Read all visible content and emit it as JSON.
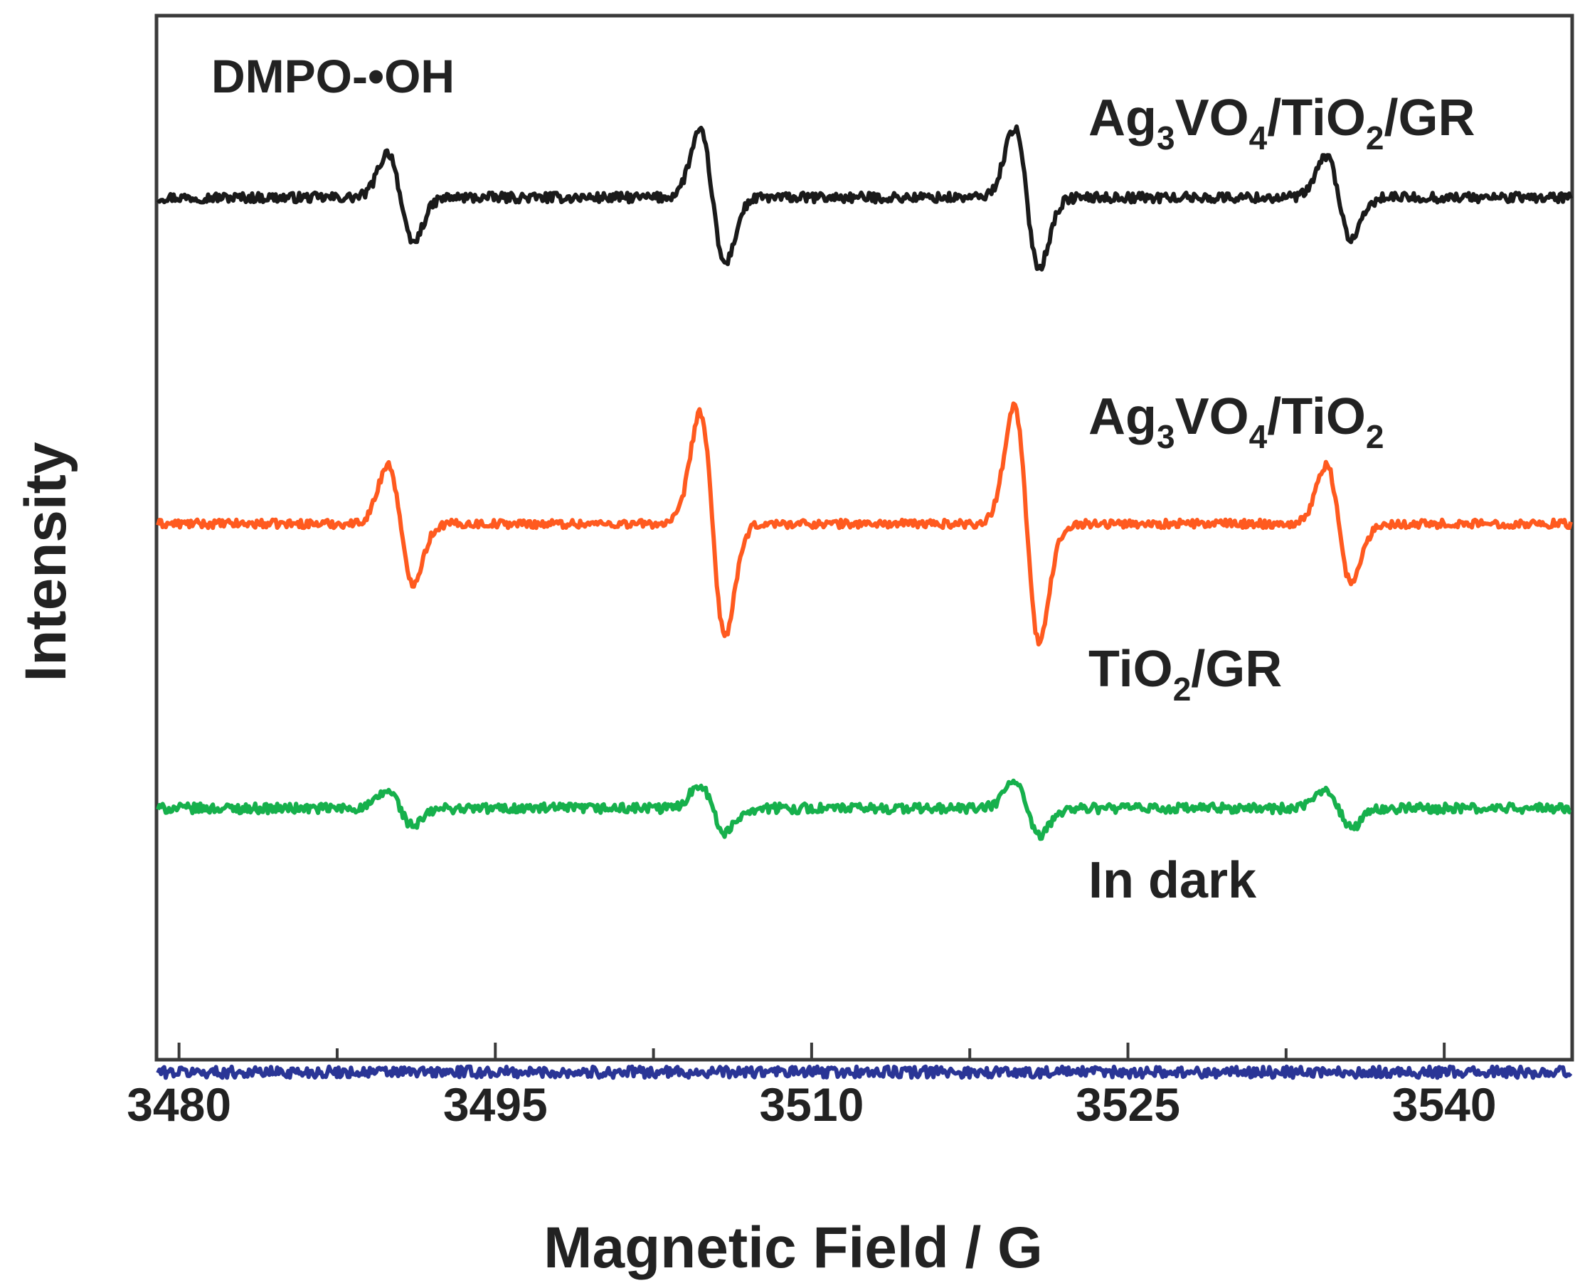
{
  "chart_data": {
    "type": "line",
    "title": "DMPO-•OH",
    "xlabel": "Magnetic Field / G",
    "ylabel": "Intensity",
    "xlim": [
      3479,
      3546
    ],
    "ylim": [
      -1.5,
      13.5
    ],
    "xticks": [
      3480,
      3495,
      3510,
      3525,
      3540
    ],
    "xtick_labels": [
      "3480",
      "3495",
      "3510",
      "3525",
      "3540"
    ],
    "y_ticks_shown": false,
    "grid": false,
    "hyperfine_lines_G": [
      3490.5,
      3505.3,
      3520.2,
      3535.0
    ],
    "series": [
      {
        "name": "Ag3VO4/TiO2/GR",
        "label_parts": [
          [
            "Ag",
            ""
          ],
          [
            "3",
            "sub"
          ],
          [
            "VO",
            ""
          ],
          [
            "4",
            "sub"
          ],
          [
            "/TiO",
            ""
          ],
          [
            "2",
            "sub"
          ],
          [
            "/GR",
            ""
          ]
        ],
        "color": "#1a1a1a",
        "baseline": 10.9,
        "amplitudes": [
          0.65,
          0.95,
          1.0,
          0.6
        ],
        "noise": 0.07
      },
      {
        "name": "Ag3VO4/TiO2",
        "label_parts": [
          [
            "Ag",
            ""
          ],
          [
            "3",
            "sub"
          ],
          [
            "VO",
            ""
          ],
          [
            "4",
            "sub"
          ],
          [
            "/TiO",
            ""
          ],
          [
            "2",
            "sub"
          ]
        ],
        "color": "#ff5a1f",
        "baseline": 6.2,
        "amplitudes": [
          0.85,
          1.6,
          1.7,
          0.85
        ],
        "noise": 0.06
      },
      {
        "name": "TiO2/GR",
        "label_parts": [
          [
            "TiO",
            ""
          ],
          [
            "2",
            "sub"
          ],
          [
            "/GR",
            ""
          ]
        ],
        "color": "#16b04c",
        "baseline": 2.1,
        "amplitudes": [
          0.25,
          0.35,
          0.4,
          0.28
        ],
        "noise": 0.07
      },
      {
        "name": "In dark",
        "label_parts": [
          [
            "In dark",
            ""
          ]
        ],
        "color": "#2a3596",
        "baseline": -1.7,
        "amplitudes": [
          0,
          0,
          0,
          0
        ],
        "noise": 0.08
      }
    ]
  }
}
